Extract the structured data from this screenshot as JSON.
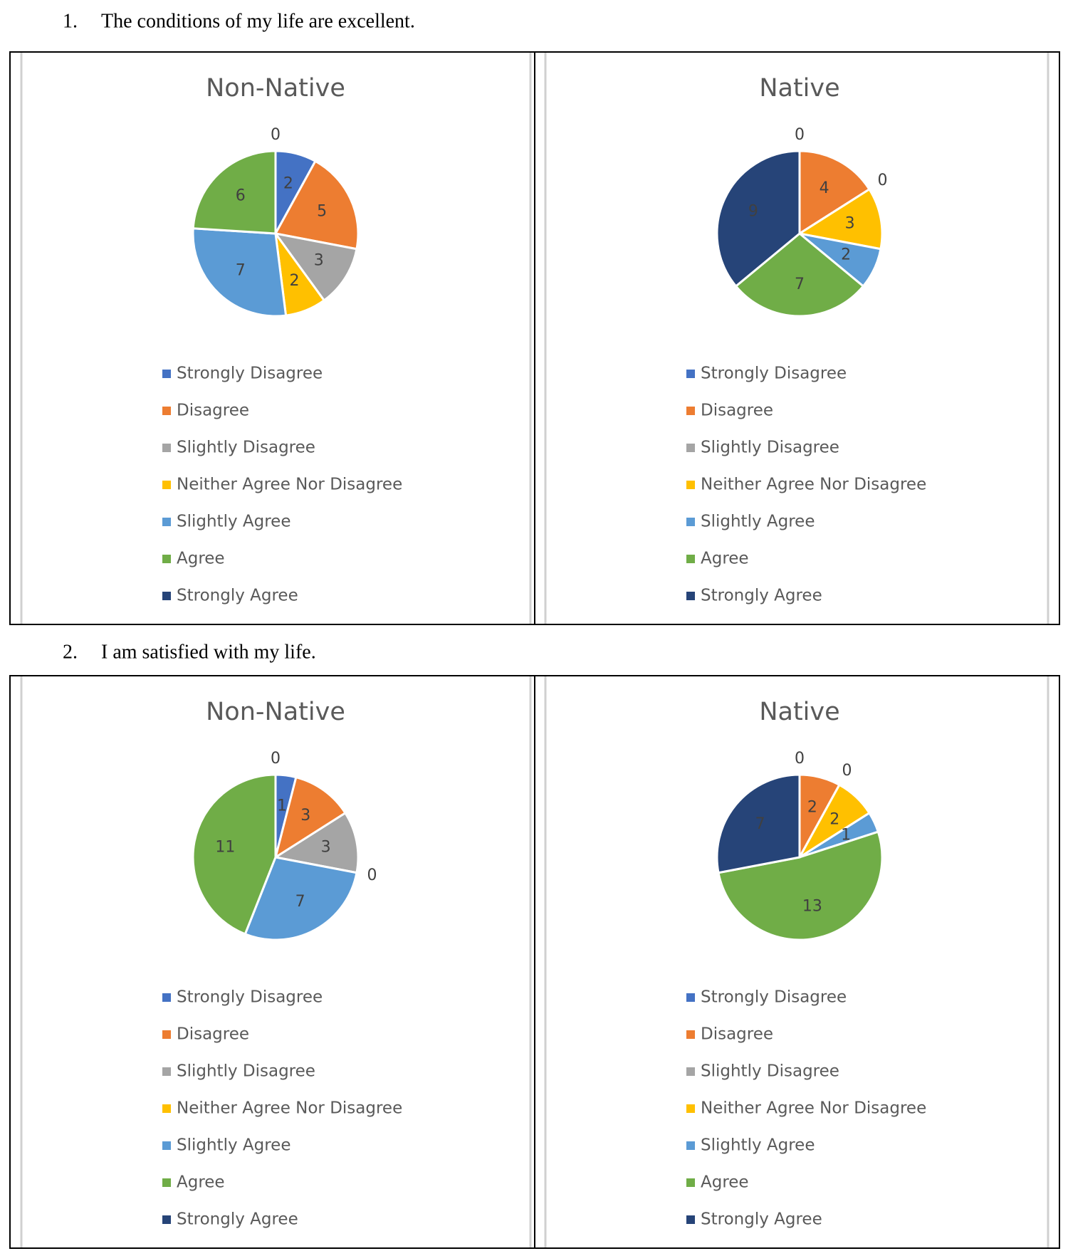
{
  "questions": [
    {
      "number": "1.",
      "text": "The conditions of my life are excellent."
    },
    {
      "number": "2.",
      "text": "I am satisfied with my life."
    }
  ],
  "chart_data": [
    {
      "type": "pie",
      "title": "Non-Native",
      "categories": [
        "Strongly Disagree",
        "Disagree",
        "Slightly Disagree",
        "Neither Agree Nor Disagree",
        "Slightly Agree",
        "Agree",
        "Strongly Agree"
      ],
      "values": [
        2,
        5,
        3,
        2,
        7,
        6,
        0
      ],
      "colors": [
        "#4472c4",
        "#ed7d31",
        "#a5a5a5",
        "#ffc000",
        "#5b9bd5",
        "#70ad47",
        "#264478"
      ]
    },
    {
      "type": "pie",
      "title": "Native",
      "categories": [
        "Strongly Disagree",
        "Disagree",
        "Slightly Disagree",
        "Neither Agree Nor Disagree",
        "Slightly Agree",
        "Agree",
        "Strongly Agree"
      ],
      "values": [
        0,
        4,
        0,
        3,
        2,
        7,
        9
      ],
      "colors": [
        "#4472c4",
        "#ed7d31",
        "#a5a5a5",
        "#ffc000",
        "#5b9bd5",
        "#70ad47",
        "#264478"
      ]
    },
    {
      "type": "pie",
      "title": "Non-Native",
      "categories": [
        "Strongly Disagree",
        "Disagree",
        "Slightly Disagree",
        "Neither Agree Nor Disagree",
        "Slightly Agree",
        "Agree",
        "Strongly Agree"
      ],
      "values": [
        1,
        3,
        3,
        0,
        7,
        11,
        0
      ],
      "colors": [
        "#4472c4",
        "#ed7d31",
        "#a5a5a5",
        "#ffc000",
        "#5b9bd5",
        "#70ad47",
        "#264478"
      ]
    },
    {
      "type": "pie",
      "title": "Native",
      "categories": [
        "Strongly Disagree",
        "Disagree",
        "Slightly Disagree",
        "Neither Agree Nor Disagree",
        "Slightly Agree",
        "Agree",
        "Strongly Agree"
      ],
      "values": [
        0,
        2,
        0,
        2,
        1,
        13,
        7
      ],
      "colors": [
        "#4472c4",
        "#ed7d31",
        "#a5a5a5",
        "#ffc000",
        "#5b9bd5",
        "#70ad47",
        "#264478"
      ]
    }
  ]
}
